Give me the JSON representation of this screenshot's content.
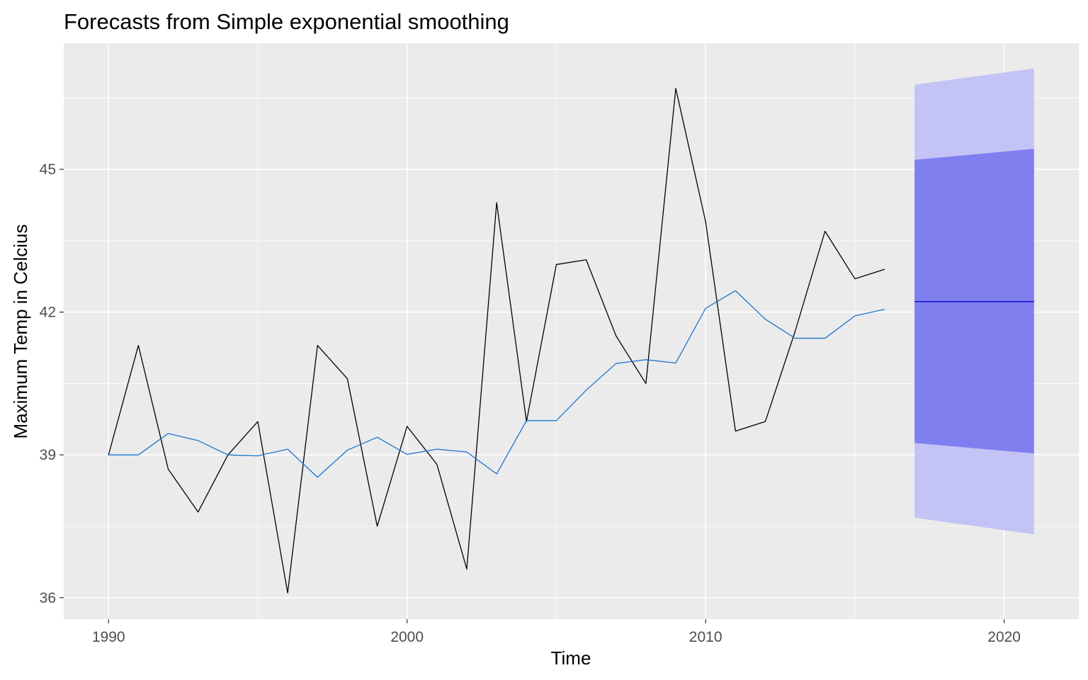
{
  "chart_data": {
    "type": "line",
    "title": "Forecasts from Simple exponential smoothing",
    "xlabel": "Time",
    "ylabel": "Maximum Temp in Celcius",
    "xlim": [
      1988.5,
      2022.5
    ],
    "ylim": [
      35.55,
      47.65
    ],
    "x_ticks": [
      1990,
      2000,
      2010,
      2020
    ],
    "x_tick_labels": [
      "1990",
      "2000",
      "2010",
      "2020"
    ],
    "y_ticks": [
      36,
      39,
      42,
      45
    ],
    "y_tick_labels": [
      "36",
      "39",
      "42",
      "45"
    ],
    "x_minor_ticks": [
      1995,
      2005,
      2015
    ],
    "y_minor_ticks": [
      37.5,
      40.5,
      43.5,
      46.5
    ],
    "grid": true,
    "legend": "none",
    "colors": {
      "panel_background": "#ebebeb",
      "grid": "#ffffff",
      "observed": "#000000",
      "fitted": "#1b75d0",
      "forecast": "#0000cc",
      "interval_80": "#7f7ff0",
      "interval_95": "#c3c3f6"
    },
    "series": [
      {
        "role": "observed",
        "x": [
          1990,
          1991,
          1992,
          1993,
          1994,
          1995,
          1996,
          1997,
          1998,
          1999,
          2000,
          2001,
          2002,
          2003,
          2004,
          2005,
          2006,
          2007,
          2008,
          2009,
          2010,
          2011,
          2012,
          2013,
          2014,
          2015,
          2016
        ],
        "values": [
          39.0,
          41.3,
          38.7,
          37.8,
          39.0,
          39.7,
          36.1,
          41.3,
          40.6,
          37.5,
          39.6,
          38.8,
          36.6,
          44.3,
          39.7,
          43.0,
          43.1,
          41.5,
          40.5,
          46.7,
          43.9,
          39.5,
          39.7,
          41.6,
          43.7,
          42.7,
          42.9
        ]
      },
      {
        "role": "fitted",
        "x": [
          1990,
          1991,
          1992,
          1993,
          1994,
          1995,
          1996,
          1997,
          1998,
          1999,
          2000,
          2001,
          2002,
          2003,
          2004,
          2005,
          2006,
          2007,
          2008,
          2009,
          2010,
          2011,
          2012,
          2013,
          2014,
          2015,
          2016
        ],
        "values": [
          39.0,
          39.0,
          39.45,
          39.3,
          39.0,
          38.98,
          39.12,
          38.53,
          39.1,
          39.37,
          39.01,
          39.12,
          39.06,
          38.6,
          39.72,
          39.72,
          40.36,
          40.92,
          41.0,
          40.93,
          42.08,
          42.45,
          41.85,
          41.45,
          41.45,
          41.92,
          42.06
        ]
      },
      {
        "role": "forecast",
        "x": [
          2017,
          2021
        ],
        "values": [
          42.22,
          42.22
        ]
      }
    ],
    "intervals": [
      {
        "level": "95",
        "x": [
          2017,
          2021
        ],
        "lower": [
          37.68,
          37.33
        ],
        "upper": [
          46.78,
          47.12
        ]
      },
      {
        "level": "80",
        "x": [
          2017,
          2021
        ],
        "lower": [
          39.25,
          39.03
        ],
        "upper": [
          45.2,
          45.43
        ]
      }
    ]
  }
}
